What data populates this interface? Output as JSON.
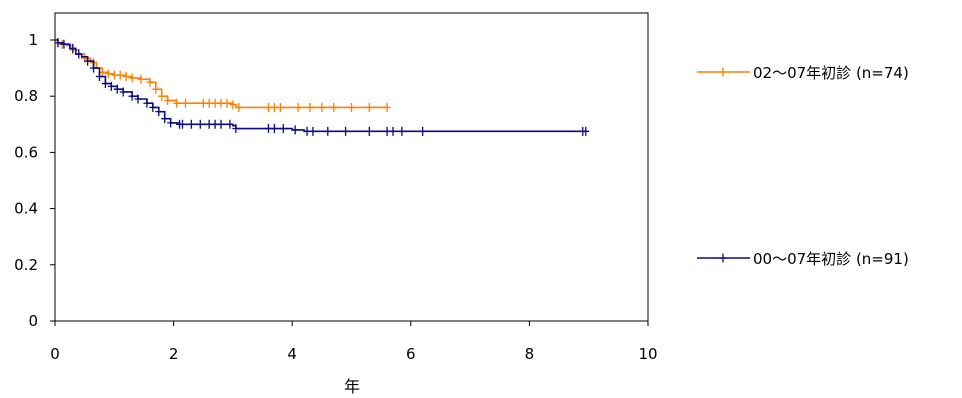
{
  "chart_data": {
    "type": "line",
    "title": "",
    "xlabel": "年",
    "ylabel": "",
    "xlim": [
      0,
      10
    ],
    "ylim": [
      0,
      1.0
    ],
    "x_ticks": [
      0,
      2,
      4,
      6,
      8,
      10
    ],
    "y_ticks": [
      0,
      0.2,
      0.4,
      0.6,
      0.8,
      1
    ],
    "x_tick_labels": [
      "0",
      "2",
      "4",
      "6",
      "8",
      "10"
    ],
    "y_tick_labels": [
      "0",
      "0.2",
      "0.4",
      "0.6",
      "0.8",
      "1"
    ],
    "grid": false,
    "legend_position": "right",
    "series": [
      {
        "name": "02～07年初診 (n=74)",
        "color": "#ff8000",
        "points": [
          [
            0.0,
            1.0
          ],
          [
            0.05,
            0.99
          ],
          [
            0.12,
            0.985
          ],
          [
            0.2,
            0.98
          ],
          [
            0.3,
            0.965
          ],
          [
            0.4,
            0.95
          ],
          [
            0.5,
            0.935
          ],
          [
            0.6,
            0.92
          ],
          [
            0.7,
            0.9
          ],
          [
            0.8,
            0.885
          ],
          [
            0.9,
            0.88
          ],
          [
            1.0,
            0.875
          ],
          [
            1.1,
            0.875
          ],
          [
            1.2,
            0.87
          ],
          [
            1.3,
            0.865
          ],
          [
            1.45,
            0.86
          ],
          [
            1.6,
            0.85
          ],
          [
            1.7,
            0.825
          ],
          [
            1.8,
            0.8
          ],
          [
            1.9,
            0.785
          ],
          [
            2.05,
            0.775
          ],
          [
            2.2,
            0.775
          ],
          [
            2.5,
            0.775
          ],
          [
            2.8,
            0.775
          ],
          [
            3.0,
            0.77
          ],
          [
            3.05,
            0.76
          ],
          [
            3.5,
            0.76
          ],
          [
            4.0,
            0.76
          ],
          [
            4.5,
            0.76
          ],
          [
            5.0,
            0.76
          ],
          [
            5.6,
            0.76
          ]
        ],
        "censor_x": [
          0.05,
          0.12,
          0.3,
          0.5,
          0.65,
          0.8,
          0.9,
          1.0,
          1.1,
          1.2,
          1.3,
          1.45,
          1.6,
          1.7,
          1.8,
          1.9,
          2.05,
          2.2,
          2.5,
          2.6,
          2.7,
          2.8,
          2.9,
          3.0,
          3.1,
          3.6,
          3.7,
          3.8,
          4.1,
          4.3,
          4.5,
          4.7,
          5.0,
          5.3,
          5.6
        ]
      },
      {
        "name": "00～07年初診 (n=91)",
        "color": "#0a0a80",
        "points": [
          [
            0.0,
            1.0
          ],
          [
            0.05,
            0.99
          ],
          [
            0.15,
            0.985
          ],
          [
            0.25,
            0.97
          ],
          [
            0.35,
            0.95
          ],
          [
            0.45,
            0.94
          ],
          [
            0.55,
            0.925
          ],
          [
            0.65,
            0.9
          ],
          [
            0.75,
            0.87
          ],
          [
            0.85,
            0.845
          ],
          [
            0.95,
            0.835
          ],
          [
            1.05,
            0.825
          ],
          [
            1.15,
            0.815
          ],
          [
            1.3,
            0.8
          ],
          [
            1.4,
            0.79
          ],
          [
            1.55,
            0.775
          ],
          [
            1.65,
            0.76
          ],
          [
            1.75,
            0.745
          ],
          [
            1.85,
            0.72
          ],
          [
            1.95,
            0.705
          ],
          [
            2.1,
            0.7
          ],
          [
            2.3,
            0.7
          ],
          [
            2.6,
            0.7
          ],
          [
            3.0,
            0.695
          ],
          [
            3.05,
            0.685
          ],
          [
            3.5,
            0.685
          ],
          [
            4.0,
            0.68
          ],
          [
            4.2,
            0.675
          ],
          [
            5.0,
            0.675
          ],
          [
            6.0,
            0.675
          ],
          [
            8.95,
            0.675
          ]
        ],
        "censor_x": [
          0.05,
          0.15,
          0.3,
          0.4,
          0.55,
          0.65,
          0.75,
          0.85,
          0.95,
          1.05,
          1.15,
          1.3,
          1.4,
          1.55,
          1.65,
          1.75,
          1.85,
          1.95,
          2.1,
          2.15,
          2.3,
          2.45,
          2.6,
          2.7,
          2.8,
          2.95,
          3.05,
          3.6,
          3.7,
          3.85,
          4.05,
          4.25,
          4.35,
          4.6,
          4.9,
          5.3,
          5.6,
          5.7,
          5.85,
          6.2,
          8.9,
          8.95
        ]
      }
    ]
  }
}
